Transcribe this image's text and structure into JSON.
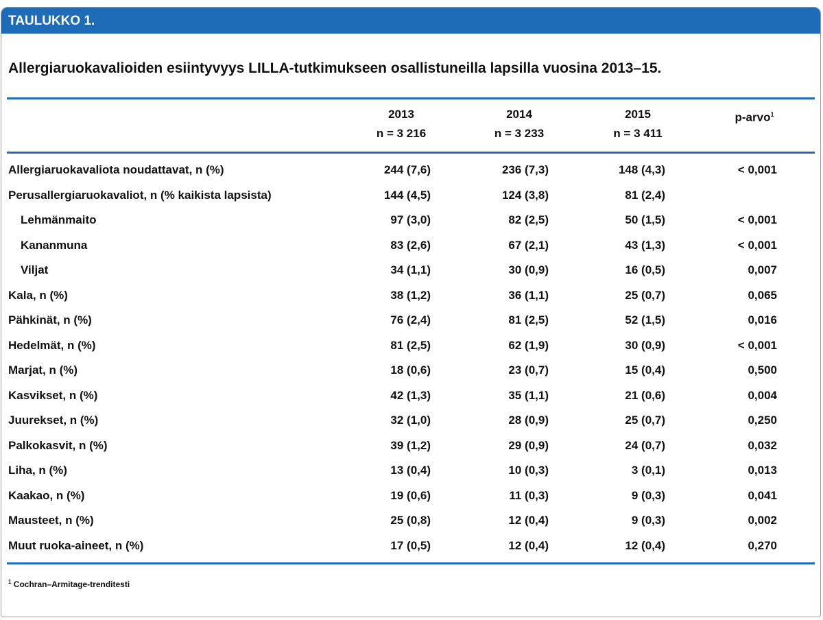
{
  "header": {
    "label": "TAULUKKO 1."
  },
  "title": "Allergiaruokavalioiden esiintyvyys LILLA-tutkimukseen osallistuneilla lapsilla vuosina 2013–15.",
  "table": {
    "columns": [
      {
        "label": "2013",
        "n": "n = 3 216"
      },
      {
        "label": "2014",
        "n": "n = 3 233"
      },
      {
        "label": "2015",
        "n": "n = 3 411"
      },
      {
        "label": "p-arvo",
        "note": "1"
      }
    ],
    "rows": [
      {
        "label": "Allergiaruokavaliota noudattavat, n (%)",
        "indent": false,
        "cells": [
          "244 (7,6)",
          "236 (7,3)",
          "148 (4,3)",
          "< 0,001"
        ]
      },
      {
        "label": "Perusallergiaruokavaliot, n (% kaikista lapsista)",
        "indent": false,
        "cells": [
          "144 (4,5)",
          "124 (3,8)",
          "81 (2,4)",
          null
        ]
      },
      {
        "label": "Lehmänmaito",
        "indent": true,
        "cells": [
          "97 (3,0)",
          "82 (2,5)",
          "50 (1,5)",
          "< 0,001"
        ]
      },
      {
        "label": "Kananmuna",
        "indent": true,
        "cells": [
          "83 (2,6)",
          "67 (2,1)",
          "43 (1,3)",
          "< 0,001"
        ]
      },
      {
        "label": "Viljat",
        "indent": true,
        "cells": [
          "34 (1,1)",
          "30 (0,9)",
          "16 (0,5)",
          "0,007"
        ]
      },
      {
        "label": "Kala, n (%)",
        "indent": false,
        "cells": [
          "38 (1,2)",
          "36 (1,1)",
          "25 (0,7)",
          "0,065"
        ]
      },
      {
        "label": "Pähkinät, n (%)",
        "indent": false,
        "cells": [
          "76 (2,4)",
          "81 (2,5)",
          "52 (1,5)",
          "0,016"
        ]
      },
      {
        "label": "Hedelmät, n (%)",
        "indent": false,
        "cells": [
          "81 (2,5)",
          "62 (1,9)",
          "30 (0,9)",
          "< 0,001"
        ]
      },
      {
        "label": "Marjat, n (%)",
        "indent": false,
        "cells": [
          "18 (0,6)",
          "23 (0,7)",
          "15 (0,4)",
          "0,500"
        ]
      },
      {
        "label": "Kasvikset, n (%)",
        "indent": false,
        "cells": [
          "42 (1,3)",
          "35 (1,1)",
          "21 (0,6)",
          "0,004"
        ]
      },
      {
        "label": "Juurekset, n (%)",
        "indent": false,
        "cells": [
          "32 (1,0)",
          "28 (0,9)",
          "25 (0,7)",
          "0,250"
        ]
      },
      {
        "label": "Palkokasvit, n (%)",
        "indent": false,
        "cells": [
          "39 (1,2)",
          "29 (0,9)",
          "24 (0,7)",
          "0,032"
        ]
      },
      {
        "label": "Liha, n (%)",
        "indent": false,
        "cells": [
          "13 (0,4)",
          "10 (0,3)",
          "3 (0,1)",
          "0,013"
        ]
      },
      {
        "label": "Kaakao, n (%)",
        "indent": false,
        "cells": [
          "19 (0,6)",
          "11 (0,3)",
          "9 (0,3)",
          "0,041"
        ]
      },
      {
        "label": "Mausteet, n (%)",
        "indent": false,
        "cells": [
          "25 (0,8)",
          "12 (0,4)",
          "9 (0,3)",
          "0,002"
        ]
      },
      {
        "label": "Muut ruoka-aineet, n (%)",
        "indent": false,
        "cells": [
          "17 (0,5)",
          "12 (0,4)",
          "12 (0,4)",
          "0,270"
        ]
      }
    ]
  },
  "footnote": {
    "marker": "1",
    "text": "Cochran–Armitage-trenditesti"
  }
}
